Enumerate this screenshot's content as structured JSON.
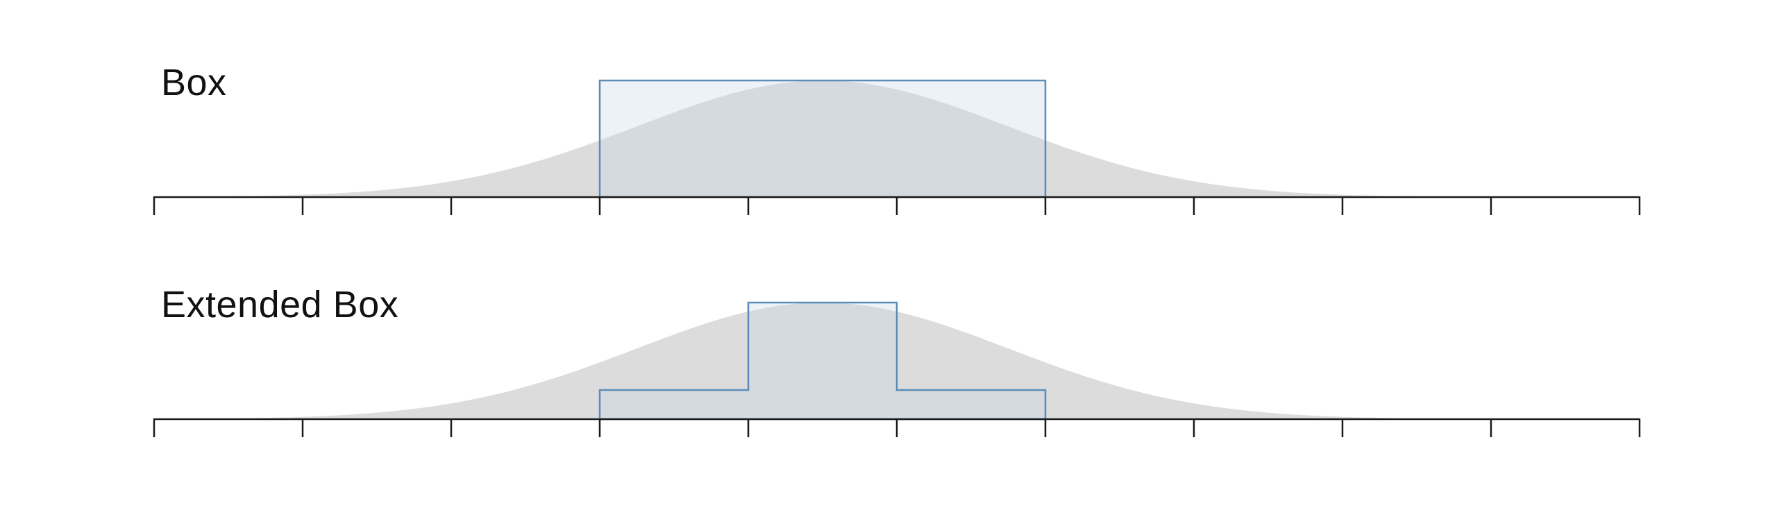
{
  "colors": {
    "background": "#ffffff",
    "axis": "#1a1a1a",
    "gaussian_fill": "#dcdcdc",
    "kernel_stroke": "#5b8db8",
    "kernel_fill": "#c7d6e6",
    "title_text": "#111111"
  },
  "panels": [
    {
      "title": "Box",
      "kernel": "box",
      "gaussian": {
        "mean": 4.5,
        "sigma": 1.25,
        "peak": 1.0
      },
      "steps": [
        {
          "x0": 3,
          "x1": 6,
          "height": 1.0
        }
      ],
      "axis": {
        "min": 0,
        "max": 10,
        "ticks": [
          0,
          1,
          2,
          3,
          4,
          5,
          6,
          7,
          8,
          9,
          10
        ]
      }
    },
    {
      "title": "Extended Box",
      "kernel": "extended-box",
      "gaussian": {
        "mean": 4.5,
        "sigma": 1.25,
        "peak": 1.0
      },
      "steps": [
        {
          "x0": 3,
          "x1": 4,
          "height": 0.25
        },
        {
          "x0": 4,
          "x1": 5,
          "height": 1.0
        },
        {
          "x0": 5,
          "x1": 6,
          "height": 0.25
        }
      ],
      "axis": {
        "min": 0,
        "max": 10,
        "ticks": [
          0,
          1,
          2,
          3,
          4,
          5,
          6,
          7,
          8,
          9,
          10
        ]
      }
    }
  ]
}
